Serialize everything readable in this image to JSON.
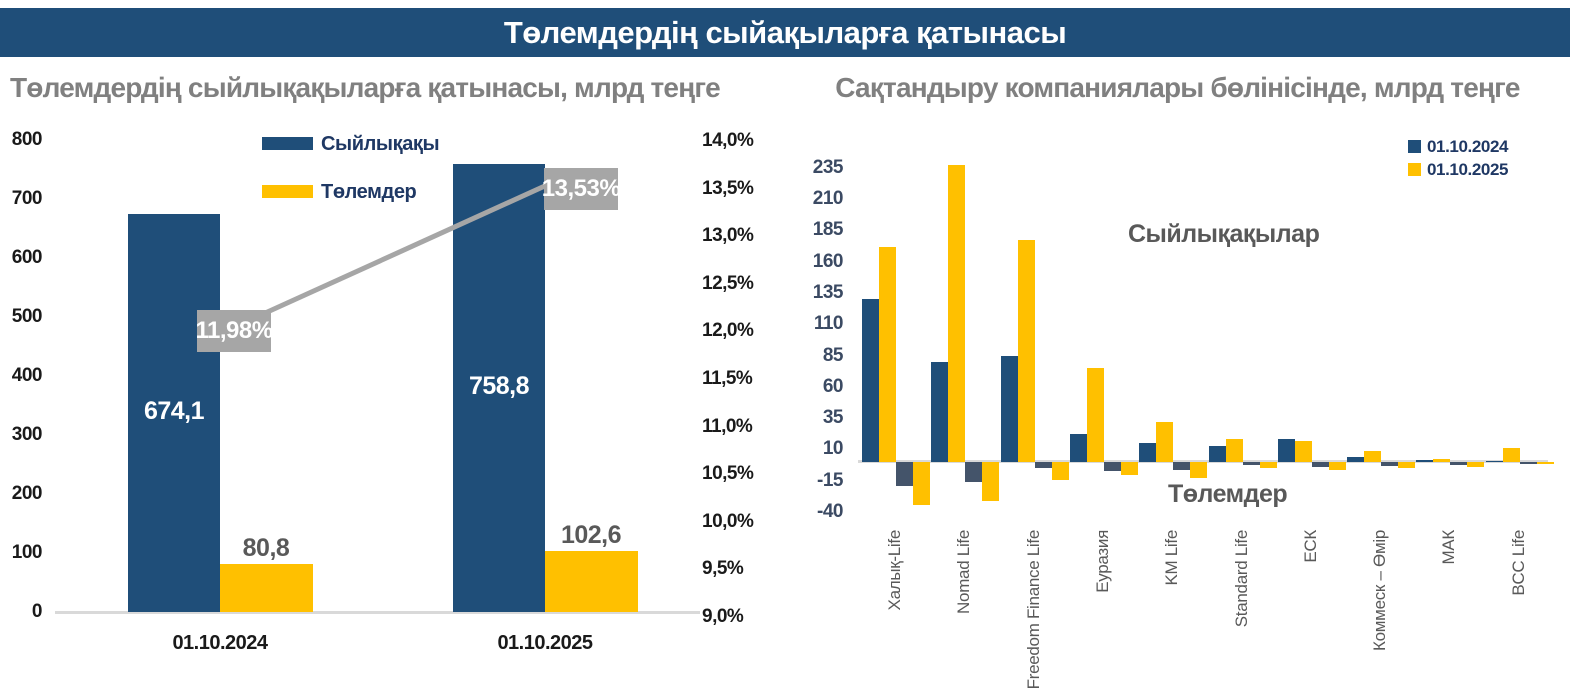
{
  "header": {
    "title": "Төлемдердің сыйақыларға қатынасы"
  },
  "chart_data": [
    {
      "type": "bar",
      "title": "Төлемдердің сыйлықақыларға қатынасы, млрд теңге",
      "categories": [
        "01.10.2024",
        "01.10.2025"
      ],
      "series": [
        {
          "name": "Сыйлықақы",
          "color": "#1F4E79",
          "values": [
            674.1,
            758.8
          ],
          "value_labels": [
            "674,1",
            "758,8"
          ]
        },
        {
          "name": "Төлемдер",
          "color": "#FFC000",
          "values": [
            80.8,
            102.6
          ],
          "value_labels": [
            "80,8",
            "102,6"
          ]
        }
      ],
      "ratio_line": {
        "color": "#A6A6A6",
        "values_pct": [
          11.98,
          13.53
        ],
        "labels": [
          "11,98%",
          "13,53%"
        ]
      },
      "value_axis": {
        "min": 0,
        "max": 800,
        "step": 100,
        "ticks": [
          "800",
          "700",
          "600",
          "500",
          "400",
          "300",
          "200",
          "100",
          "0"
        ]
      },
      "pct_axis": {
        "min": 9.0,
        "max": 14.0,
        "step": 0.5,
        "ticks": [
          "14,0%",
          "13,5%",
          "13,0%",
          "12,5%",
          "12,0%",
          "11,5%",
          "11,0%",
          "10,5%",
          "10,0%",
          "9,5%",
          "9,0%"
        ]
      },
      "legend": [
        {
          "label": "Сыйлықақы",
          "color": "#1F4E79"
        },
        {
          "label": "Төлемдер",
          "color": "#FFC000"
        }
      ]
    },
    {
      "type": "bar",
      "title": "Сақтандыру компаниялары бөлінісінде, млрд теңге",
      "categories": [
        "Халық-Life",
        "Nomad Life",
        "Freedom Finance Life",
        "Еуразия",
        "KM Life",
        "Standard Life",
        "ЕСК",
        "Коммеск – Өмір",
        "МАК",
        "BCC Life"
      ],
      "series": [
        {
          "name": "01.10.2024",
          "group": "Сыйлықақылар",
          "color": "#1F4E79",
          "values": [
            130,
            80,
            85,
            22,
            15,
            13,
            18,
            4,
            1.5,
            0.5
          ]
        },
        {
          "name": "01.10.2025",
          "group": "Сыйлықақылар",
          "color": "#FFC000",
          "values": [
            172,
            237,
            177,
            75,
            32,
            18,
            17,
            9,
            2,
            11
          ]
        },
        {
          "name": "01.10.2024",
          "group": "Төлемдер",
          "color": "#44546A",
          "values": [
            -19,
            -16,
            -5,
            -7,
            -6,
            -2,
            -4,
            -3,
            -2,
            -0.5
          ]
        },
        {
          "name": "01.10.2025",
          "group": "Төлемдер",
          "color": "#FFC000",
          "values": [
            -34,
            -31,
            -14,
            -10,
            -13,
            -5,
            -6,
            -5,
            -4,
            -1
          ]
        }
      ],
      "legend": [
        {
          "label": "01.10.2024",
          "color": "#1F4E79"
        },
        {
          "label": "01.10.2025",
          "color": "#FFC000"
        }
      ],
      "annotations": [
        {
          "text": "Сыйлықақылар"
        },
        {
          "text": "Төлемдер"
        }
      ],
      "value_axis": {
        "min": -40,
        "max": 235,
        "step": 25,
        "ticks": [
          "235",
          "210",
          "185",
          "160",
          "135",
          "110",
          "85",
          "60",
          "35",
          "10",
          "-15",
          "-40"
        ]
      }
    }
  ],
  "colors": {
    "primary_blue": "#1F4E79",
    "gold": "#FFC000",
    "slate": "#44546A",
    "label_gray": "#A6A6A6",
    "title_gray": "#808080",
    "baseline_gray": "#D9D9D9"
  }
}
